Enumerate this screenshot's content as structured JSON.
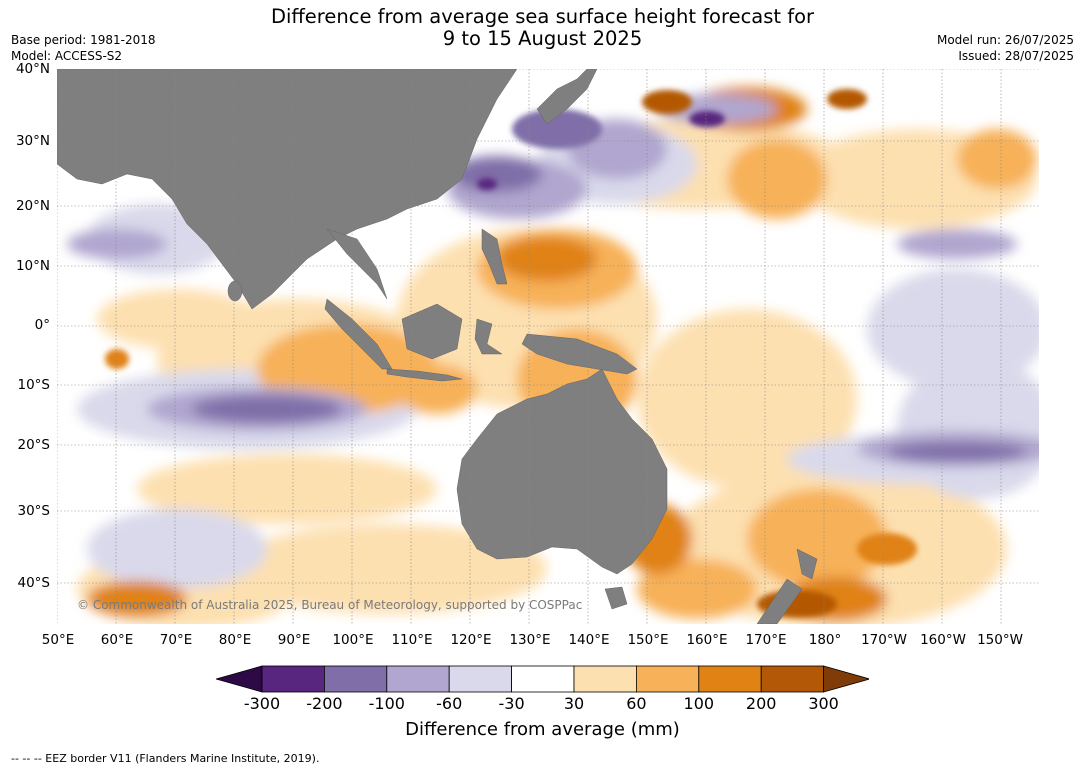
{
  "title_line1": "Difference from average sea surface height forecast for",
  "title_line2": "9 to 15 August 2025",
  "base_period": "Base period: 1981-2018",
  "model": "Model: ACCESS-S2",
  "model_run": "Model run: 26/07/2025",
  "issued": "Issued: 28/07/2025",
  "lat_labels": [
    "40°N",
    "30°N",
    "20°N",
    "10°N",
    "0°",
    "10°S",
    "20°S",
    "30°S",
    "40°S"
  ],
  "lon_labels": [
    "50°E",
    "60°E",
    "70°E",
    "80°E",
    "90°E",
    "100°E",
    "110°E",
    "120°E",
    "130°E",
    "140°E",
    "150°E",
    "160°E",
    "170°E",
    "180°",
    "170°W",
    "160°W",
    "150°W"
  ],
  "copyright": "© Commonwealth of Australia 2025, Bureau of Meteorology, supported by COSPPac",
  "colorbar": {
    "ticks": [
      "-300",
      "-200",
      "-100",
      "-60",
      "-30",
      "30",
      "60",
      "100",
      "200",
      "300"
    ],
    "colors": [
      "#2d0a45",
      "#58267f",
      "#7f6ea8",
      "#b0a6cf",
      "#d9d9eb",
      "#ffffff",
      "#fde0b0",
      "#f7b158",
      "#e08214",
      "#b35806",
      "#7f3b08"
    ],
    "label": "Difference from average (mm)"
  },
  "footnote": "--  --  -- EEZ border V11 (Flanders Marine Institute, 2019).",
  "colors": {
    "land": "#7f7f7f",
    "ocean": "#ffffff"
  }
}
